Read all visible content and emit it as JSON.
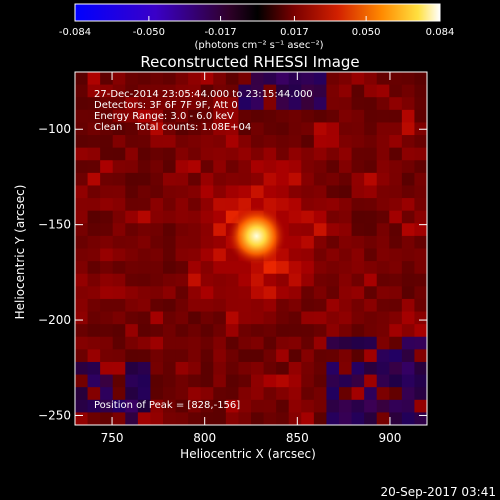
{
  "chart_data": {
    "type": "heatmap",
    "title": "Reconstructed RHESSI Image",
    "xlabel": "Heliocentric X (arcsec)",
    "ylabel": "Heliocentric Y (arcsec)",
    "xlim": [
      730,
      920
    ],
    "ylim": [
      -255,
      -70
    ],
    "x_ticks": [
      750,
      800,
      850,
      900
    ],
    "y_ticks": [
      -100,
      -150,
      -200,
      -250
    ],
    "colorbar": {
      "range": [
        -0.084,
        0.084
      ],
      "ticks": [
        "-0.084",
        "-0.050",
        "-0.017",
        "0.017",
        "0.050",
        "0.084"
      ],
      "tick_values": [
        -0.084,
        -0.05,
        -0.017,
        0.017,
        0.05,
        0.084
      ],
      "unit_label": "(photons cm⁻² s⁻¹ asec⁻²)"
    },
    "peak": {
      "x": 828,
      "y": -156
    },
    "annotations": {
      "time_range": "27-Dec-2014 23:05:44.000 to 23:15:44.000",
      "detectors": "Detectors: 3F 6F 7F 9F, Att 0",
      "energy": "Energy Range: 3.0 - 6.0 keV",
      "method": "Clean    Total counts: 1.08E+04",
      "peak_text": "Position of Peak = [828,-156]"
    },
    "footer_date": "20-Sep-2017 03:41"
  }
}
